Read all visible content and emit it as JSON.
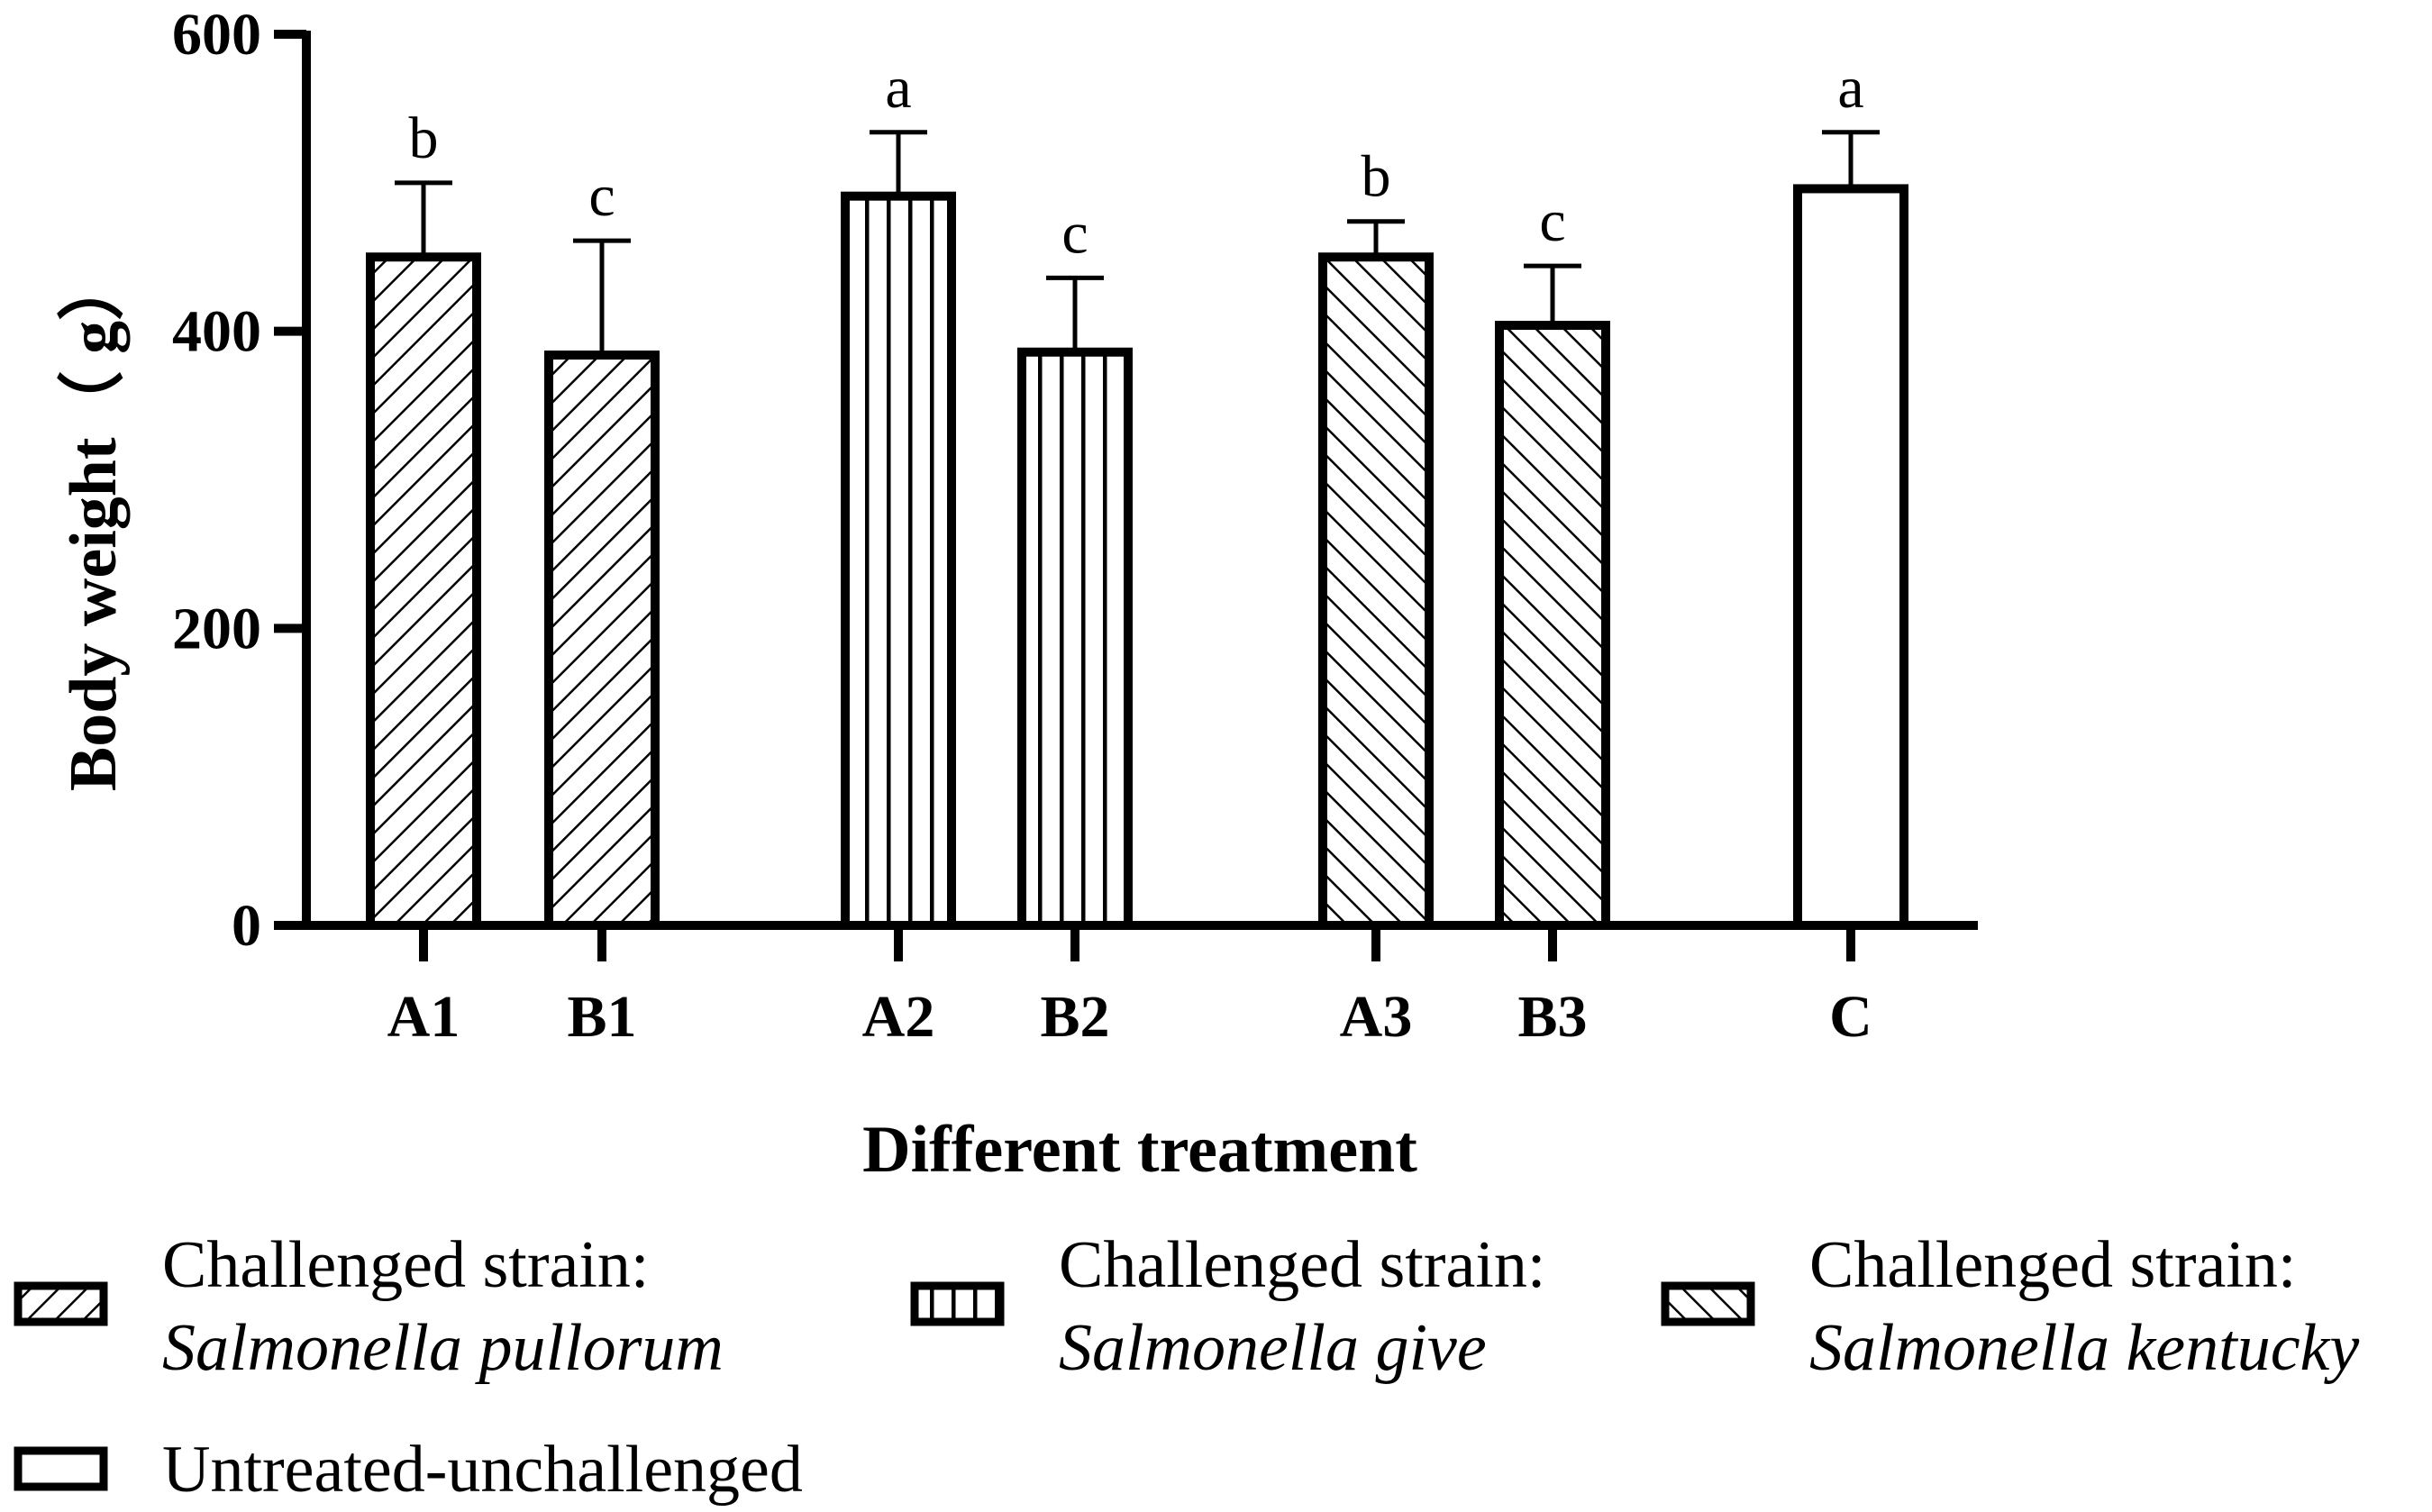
{
  "chart_data": {
    "type": "bar",
    "title": "",
    "xlabel": "Different treatment",
    "ylabel": "Body weight（ g）",
    "ylim": [
      0,
      600
    ],
    "yticks": [
      0,
      200,
      400,
      600
    ],
    "grid": false,
    "bars": [
      {
        "category": "A1",
        "value": 450,
        "error": 50,
        "significance": "b",
        "group": "pullorum"
      },
      {
        "category": "B1",
        "value": 384,
        "error": 77,
        "significance": "c",
        "group": "pullorum"
      },
      {
        "category": "A2",
        "value": 491,
        "error": 43,
        "significance": "a",
        "group": "give"
      },
      {
        "category": "B2",
        "value": 386,
        "error": 50,
        "significance": "c",
        "group": "give"
      },
      {
        "category": "A3",
        "value": 450,
        "error": 24,
        "significance": "b",
        "group": "kentucky"
      },
      {
        "category": "B3",
        "value": 404,
        "error": 40,
        "significance": "c",
        "group": "kentucky"
      },
      {
        "category": "C",
        "value": 496,
        "error": 38,
        "significance": "a",
        "group": "control"
      }
    ],
    "legend_position": "bottom",
    "legend": [
      {
        "group": "pullorum",
        "line1": "Challenged strain:",
        "line2": "Salmonella pullorum"
      },
      {
        "group": "give",
        "line1": "Challenged strain:",
        "line2": "Salmonella give"
      },
      {
        "group": "kentucky",
        "line1": "Challenged strain:",
        "line2": "Salmonella kentucky"
      },
      {
        "group": "control",
        "line1": "Untreated-unchallenged",
        "line2": ""
      }
    ]
  }
}
